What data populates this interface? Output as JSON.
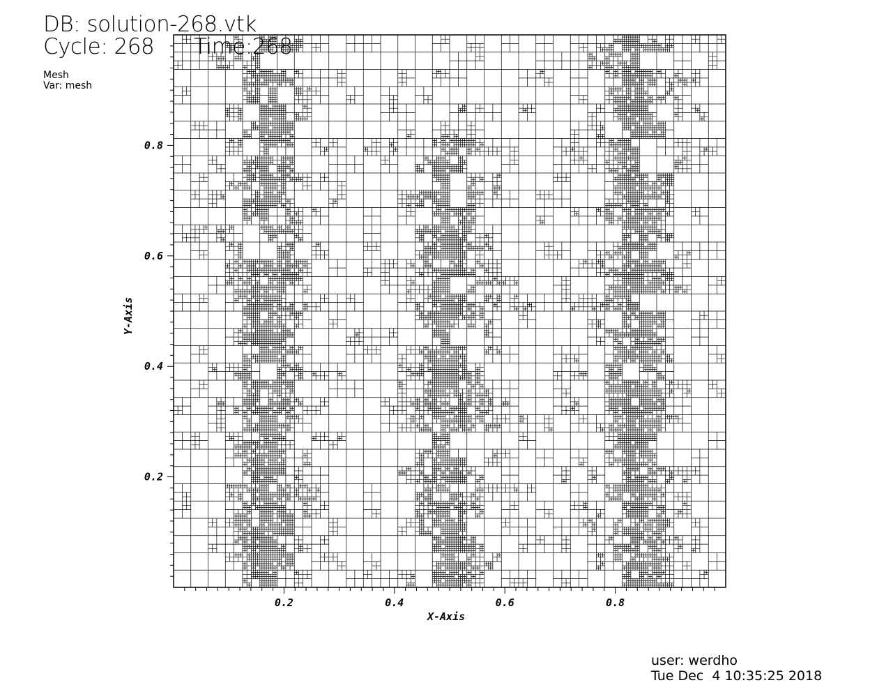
{
  "header": {
    "db": "DB: solution-268.vtk",
    "cycle": "Cycle: 268",
    "time": "Time:268"
  },
  "legend": {
    "plot_type": "Mesh",
    "variable": "Var: mesh"
  },
  "axes": {
    "x_label": "X-Axis",
    "y_label": "Y-Axis",
    "x_ticks": [
      "0.2",
      "0.4",
      "0.6",
      "0.8"
    ],
    "y_ticks": [
      "0.2",
      "0.4",
      "0.6",
      "0.8"
    ],
    "x_range": [
      0,
      1
    ],
    "y_range": [
      0,
      1
    ],
    "x_tick_values": [
      0.2,
      0.4,
      0.6,
      0.8
    ],
    "y_tick_values": [
      0.2,
      0.4,
      0.6,
      0.8
    ]
  },
  "footer": {
    "user": "user: werdho",
    "date": "Tue Dec  4 10:35:25 2018"
  },
  "colors": {
    "mesh": "#000000",
    "background": "#ffffff"
  }
}
